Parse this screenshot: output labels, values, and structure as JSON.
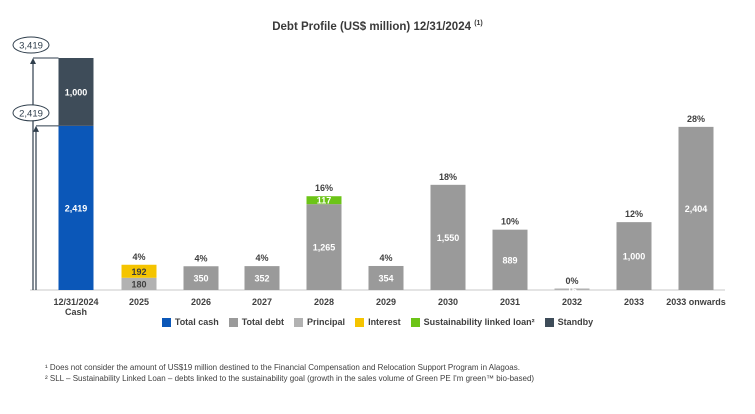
{
  "title": "Debt Profile (US$ million) 12/31/2024",
  "title_note": "(1)",
  "chart_data": {
    "type": "bar",
    "title": "Debt Profile (US$ million) 12/31/2024",
    "categories": [
      "12/31/2024 Cash",
      "2025",
      "2026",
      "2027",
      "2028",
      "2029",
      "2030",
      "2031",
      "2032",
      "2033",
      "2033 onwards"
    ],
    "category_lines": [
      [
        "12/31/2024",
        "Cash"
      ],
      [
        "2025"
      ],
      [
        "2026"
      ],
      [
        "2027"
      ],
      [
        "2028"
      ],
      [
        "2029"
      ],
      [
        "2030"
      ],
      [
        "2031"
      ],
      [
        "2032"
      ],
      [
        "2033"
      ],
      [
        "2033 onwards"
      ]
    ],
    "stacked": true,
    "series": [
      {
        "name": "Total cash",
        "color": "#0b57b8",
        "values": [
          2419,
          null,
          null,
          null,
          null,
          null,
          null,
          null,
          null,
          null,
          null
        ]
      },
      {
        "name": "Standby",
        "color": "#3e4c59",
        "values": [
          1000,
          null,
          null,
          null,
          null,
          null,
          null,
          null,
          null,
          null,
          null
        ]
      },
      {
        "name": "Principal",
        "color": "#b2b2b2",
        "values": [
          null,
          180,
          null,
          null,
          null,
          null,
          null,
          null,
          16,
          null,
          null
        ]
      },
      {
        "name": "Interest",
        "color": "#f5c400",
        "values": [
          null,
          192,
          null,
          null,
          null,
          null,
          null,
          null,
          null,
          null,
          null
        ]
      },
      {
        "name": "Total debt",
        "color": "#9a9a9a",
        "values": [
          null,
          null,
          350,
          352,
          1265,
          354,
          1550,
          889,
          null,
          1000,
          2404
        ]
      },
      {
        "name": "Sustainability linked loan²",
        "color": "#6cc417",
        "values": [
          null,
          null,
          null,
          null,
          117,
          null,
          null,
          null,
          null,
          null,
          null
        ]
      }
    ],
    "percent_labels": [
      "",
      "4%",
      "4%",
      "4%",
      "16%",
      "4%",
      "18%",
      "10%",
      "0%",
      "12%",
      "28%"
    ],
    "marker_values": [
      3419,
      2419
    ],
    "marker_labels": [
      "3,419",
      "2,419"
    ],
    "ylim": [
      0,
      3419
    ],
    "legend_position": "bottom",
    "legend_order": [
      "Total cash",
      "Total debt",
      "Principal",
      "Interest",
      "Sustainability linked loan²",
      "Standby"
    ]
  },
  "footnotes": [
    "¹ Does not consider the amount of US$19 million destined to the Financial Compensation and Relocation Support Program in Alagoas.",
    "² SLL – Sustainability Linked Loan – debts linked to the sustainability goal (growth in the sales volume of Green PE I'm green™ bio-based)"
  ]
}
